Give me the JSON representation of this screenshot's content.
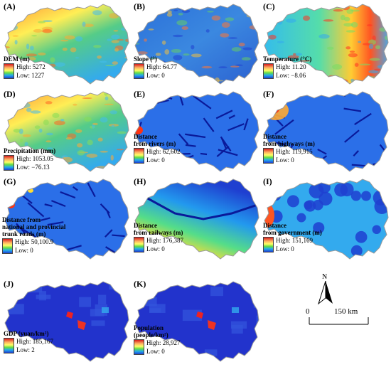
{
  "panels": [
    {
      "id": "A",
      "label": "(A)",
      "title": "DEM (m)",
      "high": "High: 5272",
      "low": "Low: 1227",
      "style": "dem"
    },
    {
      "id": "B",
      "label": "(B)",
      "title": "Slope (°)",
      "high": "High: 64.77",
      "low": "Low: 0",
      "style": "slope"
    },
    {
      "id": "C",
      "label": "(C)",
      "title": "Temperature (°C)",
      "high": "High: 11.20",
      "low": "Low: −8.06",
      "style": "temp"
    },
    {
      "id": "D",
      "label": "(D)",
      "title": "Precipitation (mm)",
      "high": "High: 1053.05",
      "low": "Low: −76.13",
      "style": "precip"
    },
    {
      "id": "E",
      "label": "(E)",
      "title": "Distance\nfrom rivers (m)",
      "high": "High: 62,602",
      "low": "Low: 0",
      "style": "dist"
    },
    {
      "id": "F",
      "label": "(F)",
      "title": "Distance\nfrom highways (m)",
      "high": "High: 119,915",
      "low": "Low: 0",
      "style": "dist"
    },
    {
      "id": "G",
      "label": "(G)",
      "title": "Distance from\nnational and provincial\ntrunk roads (m)",
      "high": "High: 50,100.9",
      "low": "Low: 0",
      "style": "dist"
    },
    {
      "id": "H",
      "label": "(H)",
      "title": "Distance\nfrom railways (m)",
      "high": "High: 176,387",
      "low": "Low: 0",
      "style": "rail"
    },
    {
      "id": "I",
      "label": "(I)",
      "title": "Distance\nfrom government (m)",
      "high": "High: 151,169",
      "low": "Low: 0",
      "style": "gov"
    },
    {
      "id": "J",
      "label": "(J)",
      "title": "GDP (yuan/km²)",
      "high": "High: 185,167",
      "low": "Low: 2",
      "style": "gdp"
    },
    {
      "id": "K",
      "label": "(K)",
      "title": "Population\n(people/km²)",
      "high": "High: 28,927",
      "low": "Low: 0",
      "style": "gdp"
    }
  ],
  "north_arrow": "N",
  "scale_bar": {
    "start": "0",
    "end": "150 km"
  },
  "colors": {
    "high": "#d7191c",
    "mid": "#ffff66",
    "low": "#1f3fd0",
    "boundary": "#9a9a9a"
  }
}
